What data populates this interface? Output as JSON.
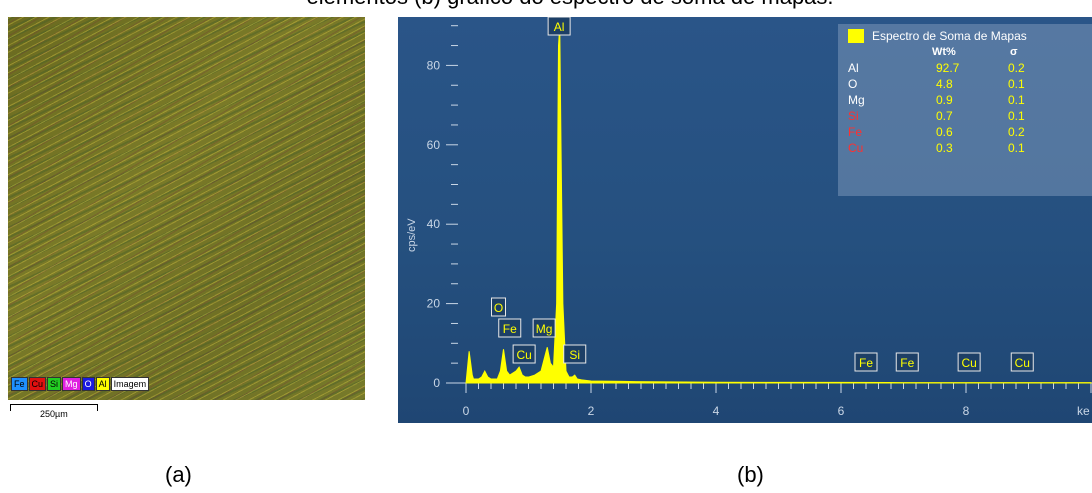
{
  "caption": "elementos (b) gráfico do espectro de soma de mapas.",
  "panel_a": {
    "label": "(a)",
    "legend": [
      {
        "symbol": "Fe",
        "color": "#1e90ff",
        "text_color": "#000000"
      },
      {
        "symbol": "Cu",
        "color": "#e01010",
        "text_color": "#000000"
      },
      {
        "symbol": "Si",
        "color": "#22cc22",
        "text_color": "#000000"
      },
      {
        "symbol": "Mg",
        "color": "#e020e0",
        "text_color": "#ffffff"
      },
      {
        "symbol": "O",
        "color": "#1a1adf",
        "text_color": "#ffffff"
      },
      {
        "symbol": "Al",
        "color": "#ffff00",
        "text_color": "#000000"
      }
    ],
    "legend_image": "Imagem",
    "scale_label": "250µm"
  },
  "panel_b": {
    "label": "(b)",
    "colors": {
      "background": "#25507f",
      "spectrum": "#ffff00",
      "label_text": "#ffff00"
    },
    "quant_table": {
      "title": "Espectro de Soma de Mapas",
      "col_wt": "Wt%",
      "col_sigma": "σ",
      "rows": [
        {
          "element": "Al",
          "wt": "92.7",
          "sigma": "0.2",
          "color": "#ffffff"
        },
        {
          "element": "O",
          "wt": "4.8",
          "sigma": "0.1",
          "color": "#ffffff"
        },
        {
          "element": "Mg",
          "wt": "0.9",
          "sigma": "0.1",
          "color": "#ffffff"
        },
        {
          "element": "Si",
          "wt": "0.7",
          "sigma": "0.1",
          "color": "#ff3030"
        },
        {
          "element": "Fe",
          "wt": "0.6",
          "sigma": "0.2",
          "color": "#ff3030"
        },
        {
          "element": "Cu",
          "wt": "0.3",
          "sigma": "0.1",
          "color": "#ff3030"
        }
      ]
    }
  },
  "chart_data": {
    "type": "line",
    "title": "",
    "xlabel": "ke",
    "ylabel": "cps/eV",
    "xlim": [
      -0.3,
      10.2
    ],
    "ylim": [
      -2,
      91
    ],
    "x_ticks": [
      "0",
      "2",
      "4",
      "6",
      "8"
    ],
    "y_ticks": [
      "0",
      "20",
      "40",
      "60",
      "80"
    ],
    "grid": false,
    "series": [
      {
        "x": [
          0.0,
          0.05,
          0.1,
          0.12,
          0.2,
          0.25,
          0.3,
          0.35,
          0.4,
          0.5,
          0.55,
          0.6,
          0.65,
          0.7,
          0.75,
          0.8,
          0.85,
          0.9,
          0.95,
          1.0,
          1.1,
          1.2,
          1.25,
          1.3,
          1.35,
          1.4,
          1.45,
          1.48,
          1.5,
          1.52,
          1.55,
          1.6,
          1.65,
          1.7,
          1.74,
          1.78,
          1.85,
          2.0,
          2.5,
          3.0,
          4.0,
          5.0,
          6.0,
          7.0,
          8.0,
          9.0,
          10.0
        ],
        "y": [
          0,
          8,
          2,
          1,
          1,
          1.5,
          3,
          1.5,
          1,
          1,
          3,
          8.5,
          3,
          2,
          2.5,
          3,
          4,
          2,
          1.5,
          1.5,
          2,
          3,
          6,
          9,
          5,
          4,
          20,
          85,
          90,
          60,
          20,
          3,
          1.5,
          1.5,
          2,
          1,
          0.8,
          0.5,
          0.4,
          0.3,
          0.2,
          0.15,
          0.15,
          0.1,
          0.1,
          0.1,
          0.1
        ]
      }
    ],
    "peak_labels": [
      {
        "element": "Al",
        "x": 1.49
      },
      {
        "element": "O",
        "x": 0.52
      },
      {
        "element": "Fe",
        "x": 0.7
      },
      {
        "element": "Cu",
        "x": 0.93
      },
      {
        "element": "Mg",
        "x": 1.25
      },
      {
        "element": "Si",
        "x": 1.74
      },
      {
        "element": "Fe",
        "x": 6.4
      },
      {
        "element": "Fe",
        "x": 7.06
      },
      {
        "element": "Cu",
        "x": 8.05
      },
      {
        "element": "Cu",
        "x": 8.9
      }
    ]
  }
}
